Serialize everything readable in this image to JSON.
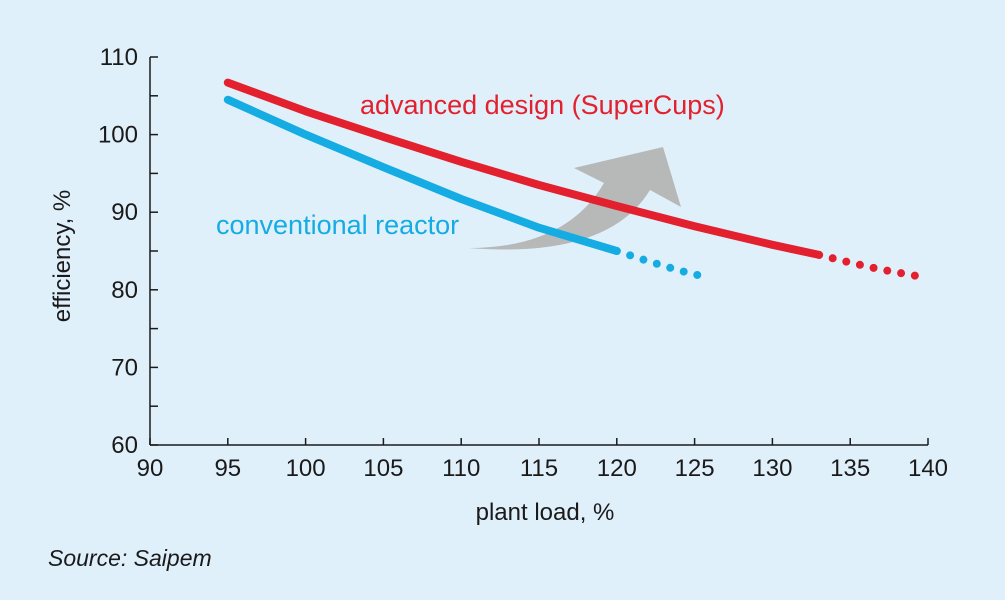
{
  "chart_data": {
    "type": "line",
    "xlabel": "plant load, %",
    "ylabel": "efficiency, %",
    "xlim": [
      90,
      140
    ],
    "ylim": [
      60,
      110
    ],
    "x_ticks": [
      90,
      95,
      100,
      105,
      110,
      115,
      120,
      125,
      130,
      135,
      140
    ],
    "y_ticks": [
      60,
      70,
      80,
      90,
      100,
      110
    ],
    "series": [
      {
        "name": "advanced design (SuperCups)",
        "color": "#e2202e",
        "solid": {
          "x": [
            95,
            100,
            105,
            110,
            115,
            120,
            125,
            130,
            133
          ],
          "y": [
            106.7,
            103.0,
            99.7,
            96.5,
            93.5,
            90.8,
            88.2,
            85.8,
            84.5
          ]
        },
        "dotted": {
          "x": [
            133,
            135,
            137,
            139.5
          ],
          "y": [
            84.5,
            83.5,
            82.6,
            81.7
          ]
        }
      },
      {
        "name": "conventional reactor",
        "color": "#14ace2",
        "solid": {
          "x": [
            95,
            100,
            105,
            110,
            115,
            120
          ],
          "y": [
            104.5,
            100.0,
            95.8,
            91.7,
            88.0,
            85.0
          ]
        },
        "dotted": {
          "x": [
            120,
            122,
            124,
            125.8
          ],
          "y": [
            85.0,
            83.7,
            82.5,
            81.6
          ]
        }
      }
    ],
    "annotation": {
      "type": "arrow",
      "color": "#b4b4b4"
    }
  },
  "source": "Source: Saipem"
}
